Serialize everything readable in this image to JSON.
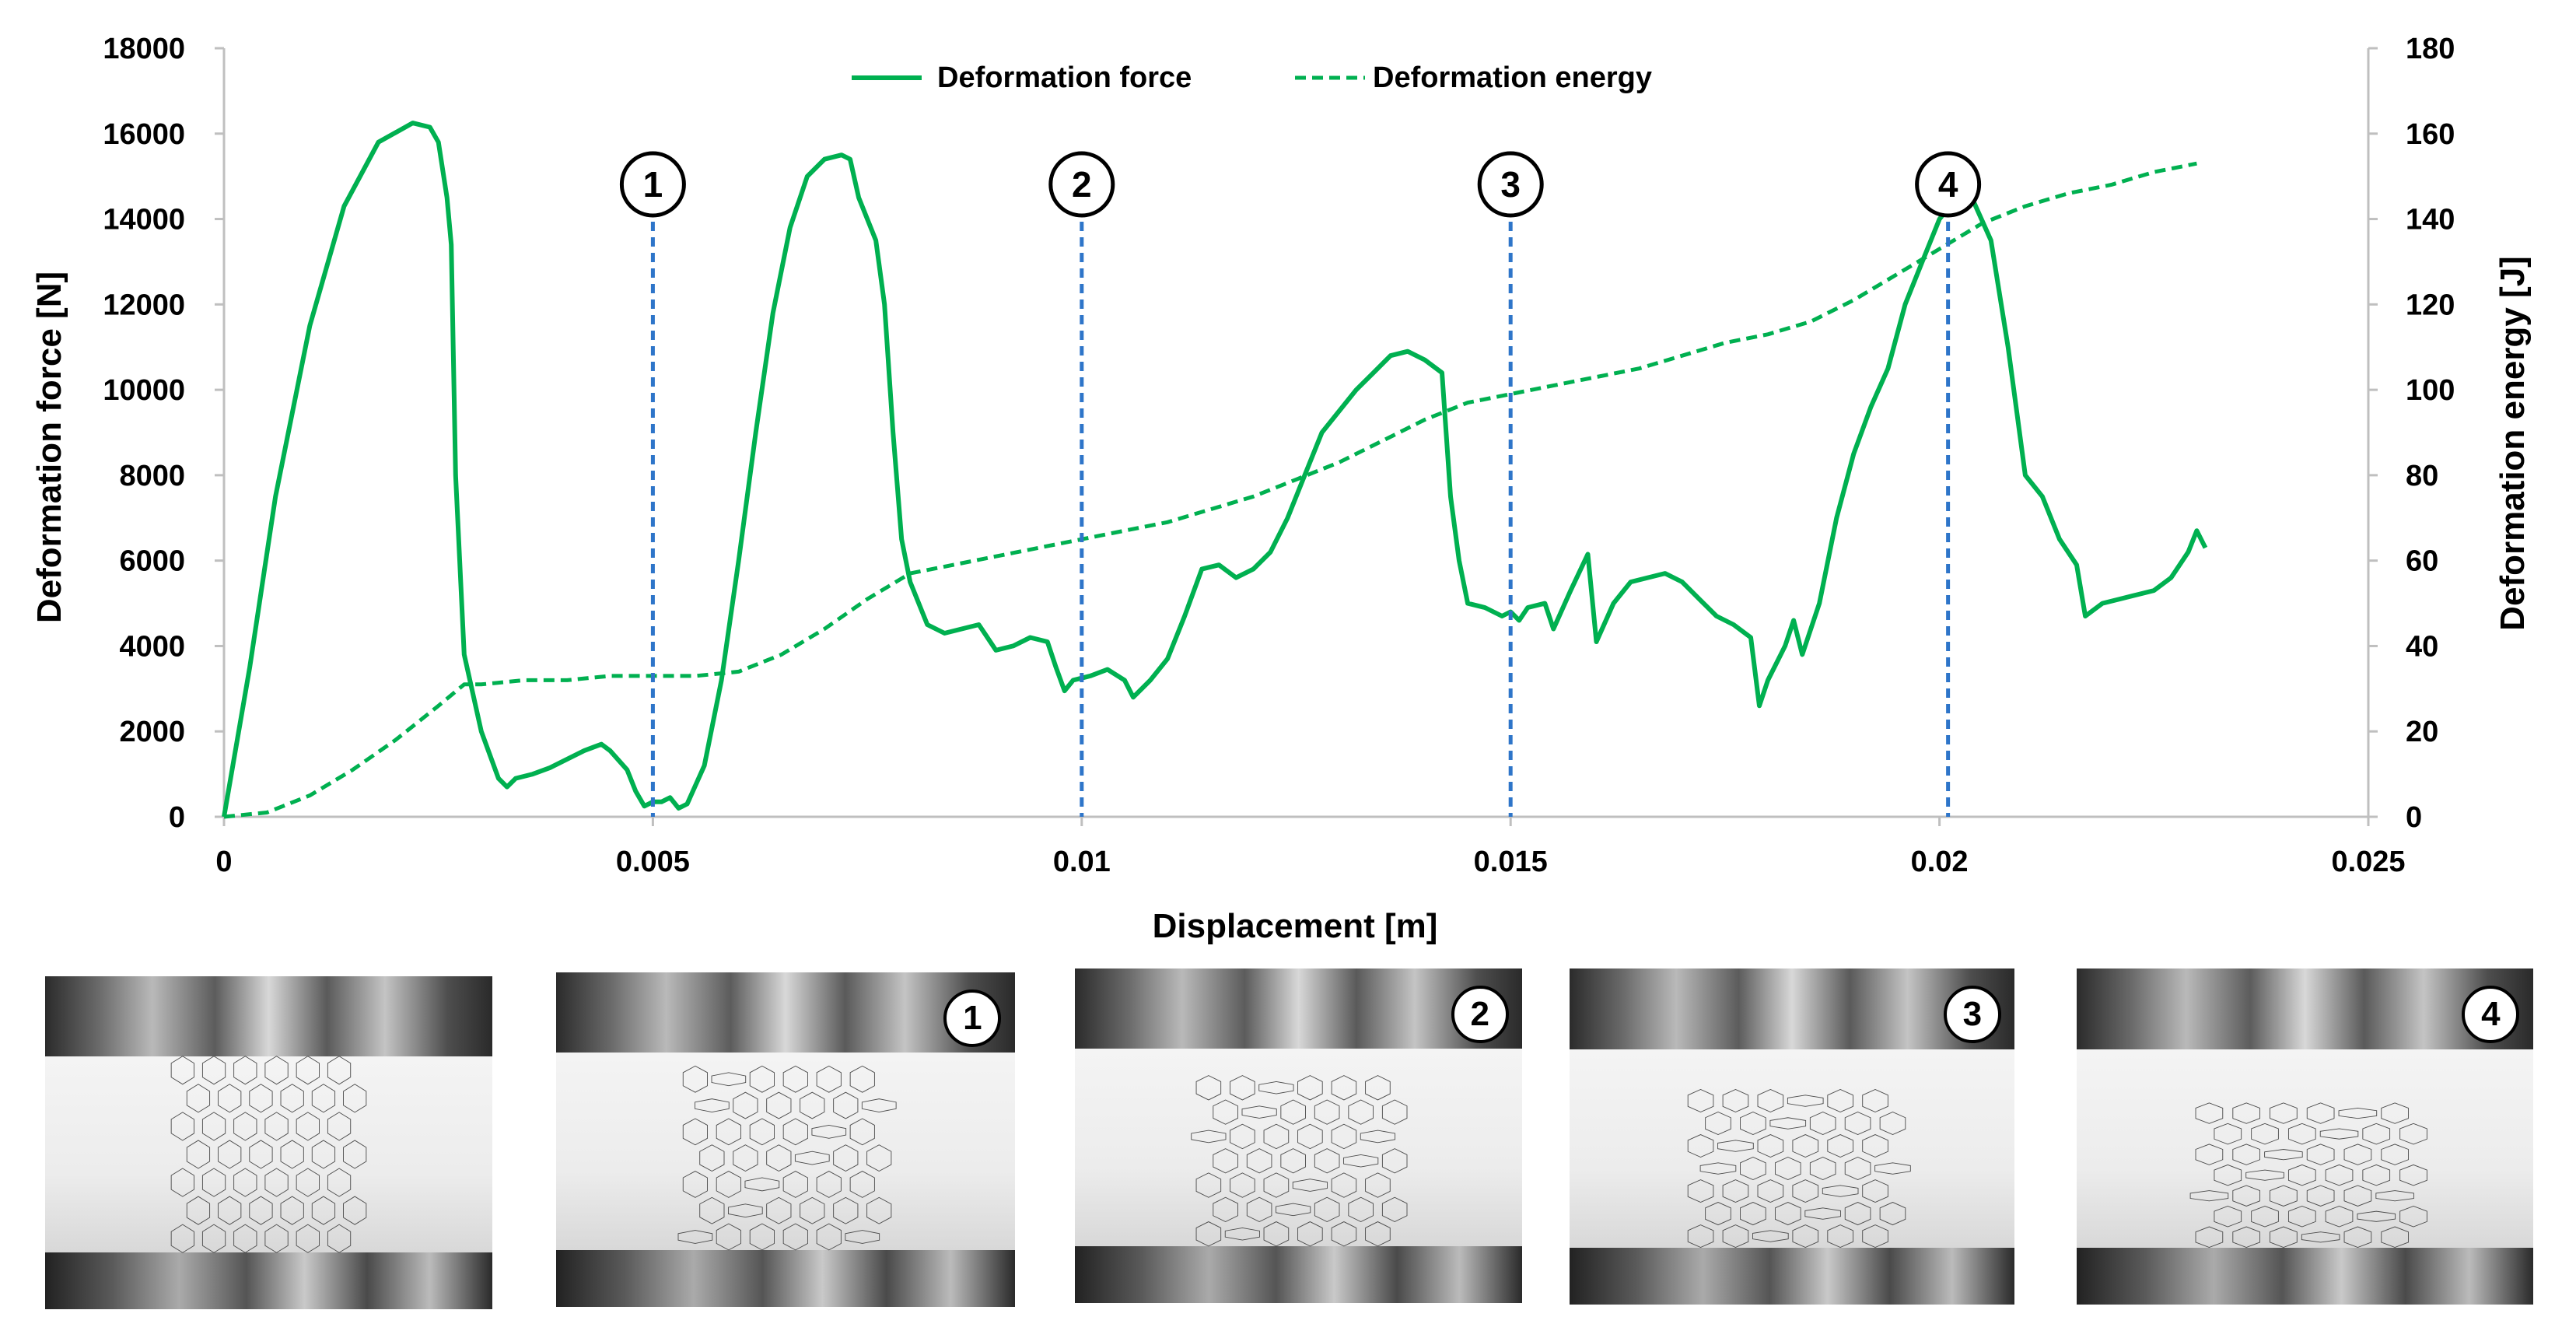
{
  "chart_data": {
    "type": "line",
    "xlabel": "Displacement [m]",
    "ylabel_left": "Deformation force [N]",
    "ylabel_right": "Deformation energy [J]",
    "xlim": [
      0,
      0.025
    ],
    "ylim_left": [
      0,
      18000
    ],
    "ylim_right": [
      0,
      180
    ],
    "x_ticks": [
      "0",
      "0.005",
      "0.01",
      "0.015",
      "0.02",
      "0.025"
    ],
    "y_ticks_left": [
      "0",
      "2000",
      "4000",
      "6000",
      "8000",
      "10000",
      "12000",
      "14000",
      "16000",
      "18000"
    ],
    "y_ticks_right": [
      "0",
      "20",
      "40",
      "60",
      "80",
      "100",
      "120",
      "140",
      "160",
      "180"
    ],
    "grid": false,
    "legend_position": "top-center",
    "series": [
      {
        "name": "Deformation force",
        "axis": "left",
        "style": "solid",
        "color": "#00b050",
        "points": [
          [
            0,
            0
          ],
          [
            0.0003,
            3500
          ],
          [
            0.0006,
            7500
          ],
          [
            0.001,
            11500
          ],
          [
            0.0014,
            14300
          ],
          [
            0.0018,
            15800
          ],
          [
            0.0022,
            16250
          ],
          [
            0.0024,
            16150
          ],
          [
            0.0025,
            15800
          ],
          [
            0.0026,
            14500
          ],
          [
            0.00265,
            13400
          ],
          [
            0.0027,
            8000
          ],
          [
            0.0028,
            3800
          ],
          [
            0.003,
            2000
          ],
          [
            0.0032,
            900
          ],
          [
            0.0033,
            700
          ],
          [
            0.0034,
            900
          ],
          [
            0.0036,
            1000
          ],
          [
            0.0038,
            1150
          ],
          [
            0.004,
            1350
          ],
          [
            0.0042,
            1550
          ],
          [
            0.0044,
            1700
          ],
          [
            0.0045,
            1550
          ],
          [
            0.0047,
            1100
          ],
          [
            0.0048,
            600
          ],
          [
            0.0049,
            250
          ],
          [
            0.005,
            350
          ],
          [
            0.0051,
            350
          ],
          [
            0.0052,
            450
          ],
          [
            0.0053,
            200
          ],
          [
            0.0054,
            300
          ],
          [
            0.0056,
            1200
          ],
          [
            0.0058,
            3200
          ],
          [
            0.006,
            6000
          ],
          [
            0.0062,
            9000
          ],
          [
            0.0064,
            11800
          ],
          [
            0.0066,
            13800
          ],
          [
            0.0068,
            15000
          ],
          [
            0.007,
            15400
          ],
          [
            0.0072,
            15500
          ],
          [
            0.0073,
            15400
          ],
          [
            0.0074,
            14500
          ],
          [
            0.0076,
            13500
          ],
          [
            0.0077,
            12000
          ],
          [
            0.0078,
            9000
          ],
          [
            0.0079,
            6500
          ],
          [
            0.008,
            5500
          ],
          [
            0.0082,
            4500
          ],
          [
            0.0084,
            4300
          ],
          [
            0.0086,
            4400
          ],
          [
            0.0088,
            4500
          ],
          [
            0.009,
            3900
          ],
          [
            0.0092,
            4000
          ],
          [
            0.0094,
            4200
          ],
          [
            0.0096,
            4100
          ],
          [
            0.0097,
            3500
          ],
          [
            0.0098,
            2950
          ],
          [
            0.0099,
            3200
          ],
          [
            0.0101,
            3300
          ],
          [
            0.0103,
            3450
          ],
          [
            0.0105,
            3200
          ],
          [
            0.0106,
            2800
          ],
          [
            0.0108,
            3200
          ],
          [
            0.011,
            3700
          ],
          [
            0.0112,
            4700
          ],
          [
            0.0114,
            5800
          ],
          [
            0.0116,
            5900
          ],
          [
            0.0118,
            5600
          ],
          [
            0.012,
            5800
          ],
          [
            0.0122,
            6200
          ],
          [
            0.0124,
            7000
          ],
          [
            0.0126,
            8000
          ],
          [
            0.0128,
            9000
          ],
          [
            0.013,
            9500
          ],
          [
            0.0132,
            10000
          ],
          [
            0.0134,
            10400
          ],
          [
            0.0136,
            10800
          ],
          [
            0.0138,
            10900
          ],
          [
            0.014,
            10700
          ],
          [
            0.0142,
            10400
          ],
          [
            0.0143,
            7500
          ],
          [
            0.0144,
            6000
          ],
          [
            0.0145,
            5000
          ],
          [
            0.0147,
            4900
          ],
          [
            0.0149,
            4700
          ],
          [
            0.015,
            4800
          ],
          [
            0.0151,
            4600
          ],
          [
            0.0152,
            4900
          ],
          [
            0.0154,
            5000
          ],
          [
            0.0155,
            4400
          ],
          [
            0.0157,
            5300
          ],
          [
            0.0159,
            6150
          ],
          [
            0.016,
            4100
          ],
          [
            0.0162,
            5000
          ],
          [
            0.0164,
            5500
          ],
          [
            0.0166,
            5600
          ],
          [
            0.0168,
            5700
          ],
          [
            0.017,
            5500
          ],
          [
            0.0172,
            5100
          ],
          [
            0.0174,
            4700
          ],
          [
            0.0176,
            4500
          ],
          [
            0.0178,
            4200
          ],
          [
            0.0179,
            2600
          ],
          [
            0.018,
            3200
          ],
          [
            0.0182,
            4000
          ],
          [
            0.0183,
            4600
          ],
          [
            0.0184,
            3800
          ],
          [
            0.0186,
            5000
          ],
          [
            0.0188,
            7000
          ],
          [
            0.019,
            8500
          ],
          [
            0.0192,
            9600
          ],
          [
            0.0194,
            10500
          ],
          [
            0.0196,
            12000
          ],
          [
            0.0198,
            13000
          ],
          [
            0.02,
            14000
          ],
          [
            0.0202,
            14500
          ],
          [
            0.0204,
            14400
          ],
          [
            0.0206,
            13500
          ],
          [
            0.0208,
            11000
          ],
          [
            0.0209,
            9500
          ],
          [
            0.021,
            8000
          ],
          [
            0.0212,
            7500
          ],
          [
            0.0214,
            6500
          ],
          [
            0.0216,
            5900
          ],
          [
            0.0217,
            4700
          ],
          [
            0.0219,
            5000
          ],
          [
            0.0221,
            5100
          ],
          [
            0.0223,
            5200
          ],
          [
            0.0225,
            5300
          ],
          [
            0.0227,
            5600
          ],
          [
            0.0229,
            6200
          ],
          [
            0.023,
            6700
          ],
          [
            0.0231,
            6300
          ]
        ]
      },
      {
        "name": "Deformation energy",
        "axis": "right",
        "style": "dashed",
        "color": "#00b050",
        "points": [
          [
            0,
            0
          ],
          [
            0.0005,
            1
          ],
          [
            0.001,
            5
          ],
          [
            0.0015,
            11
          ],
          [
            0.002,
            18
          ],
          [
            0.0025,
            26
          ],
          [
            0.0028,
            31
          ],
          [
            0.003,
            31
          ],
          [
            0.0035,
            32
          ],
          [
            0.004,
            32
          ],
          [
            0.0045,
            33
          ],
          [
            0.005,
            33
          ],
          [
            0.0055,
            33
          ],
          [
            0.006,
            34
          ],
          [
            0.0065,
            38
          ],
          [
            0.007,
            44
          ],
          [
            0.0075,
            51
          ],
          [
            0.008,
            57
          ],
          [
            0.0085,
            59
          ],
          [
            0.009,
            61
          ],
          [
            0.0095,
            63
          ],
          [
            0.01,
            65
          ],
          [
            0.0105,
            67
          ],
          [
            0.011,
            69
          ],
          [
            0.0115,
            72
          ],
          [
            0.012,
            75
          ],
          [
            0.0125,
            79
          ],
          [
            0.013,
            83
          ],
          [
            0.0135,
            88
          ],
          [
            0.014,
            93
          ],
          [
            0.0145,
            97
          ],
          [
            0.015,
            99
          ],
          [
            0.0155,
            101
          ],
          [
            0.016,
            103
          ],
          [
            0.0165,
            105
          ],
          [
            0.017,
            108
          ],
          [
            0.0175,
            111
          ],
          [
            0.018,
            113
          ],
          [
            0.0185,
            116
          ],
          [
            0.019,
            121
          ],
          [
            0.0195,
            127
          ],
          [
            0.02,
            133
          ],
          [
            0.0205,
            139
          ],
          [
            0.021,
            143
          ],
          [
            0.0215,
            146
          ],
          [
            0.022,
            148
          ],
          [
            0.0225,
            151
          ],
          [
            0.023,
            153
          ]
        ]
      }
    ],
    "markers": [
      {
        "label": "1",
        "x": 0.005
      },
      {
        "label": "2",
        "x": 0.01
      },
      {
        "label": "3",
        "x": 0.015
      },
      {
        "label": "4",
        "x": 0.0201
      }
    ],
    "marker_color": "#2e75c9"
  },
  "photos": [
    {
      "label": "",
      "stage": 0
    },
    {
      "label": "1",
      "stage": 1
    },
    {
      "label": "2",
      "stage": 2
    },
    {
      "label": "3",
      "stage": 3
    },
    {
      "label": "4",
      "stage": 4
    }
  ]
}
